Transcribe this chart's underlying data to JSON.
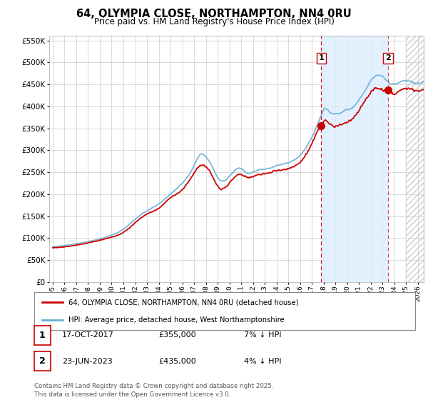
{
  "title": "64, OLYMPIA CLOSE, NORTHAMPTON, NN4 0RU",
  "subtitle": "Price paid vs. HM Land Registry's House Price Index (HPI)",
  "legend_line1": "64, OLYMPIA CLOSE, NORTHAMPTON, NN4 0RU (detached house)",
  "legend_line2": "HPI: Average price, detached house, West Northamptonshire",
  "transaction1_date": "17-OCT-2017",
  "transaction1_price": "£355,000",
  "transaction1_hpi": "7% ↓ HPI",
  "transaction2_date": "23-JUN-2023",
  "transaction2_price": "£435,000",
  "transaction2_hpi": "4% ↓ HPI",
  "footer": "Contains HM Land Registry data © Crown copyright and database right 2025.\nThis data is licensed under the Open Government Licence v3.0.",
  "hpi_color": "#6baed6",
  "price_color": "#cc0000",
  "vline1_color": "#cc0000",
  "vline2_color": "#cc0000",
  "background_color": "#ffffff",
  "plot_bg_color": "#ffffff",
  "grid_color": "#cccccc",
  "ylim": [
    0,
    560000
  ],
  "yticks": [
    0,
    50000,
    100000,
    150000,
    200000,
    250000,
    300000,
    350000,
    400000,
    450000,
    500000,
    550000
  ],
  "xmin": 1994.7,
  "xmax": 2026.5,
  "transaction1_x": 2017.79,
  "transaction1_y": 355000,
  "transaction2_x": 2023.48,
  "transaction2_y": 435000,
  "hpi_shade_color": "#ddeeff",
  "future_start": 2025.0
}
